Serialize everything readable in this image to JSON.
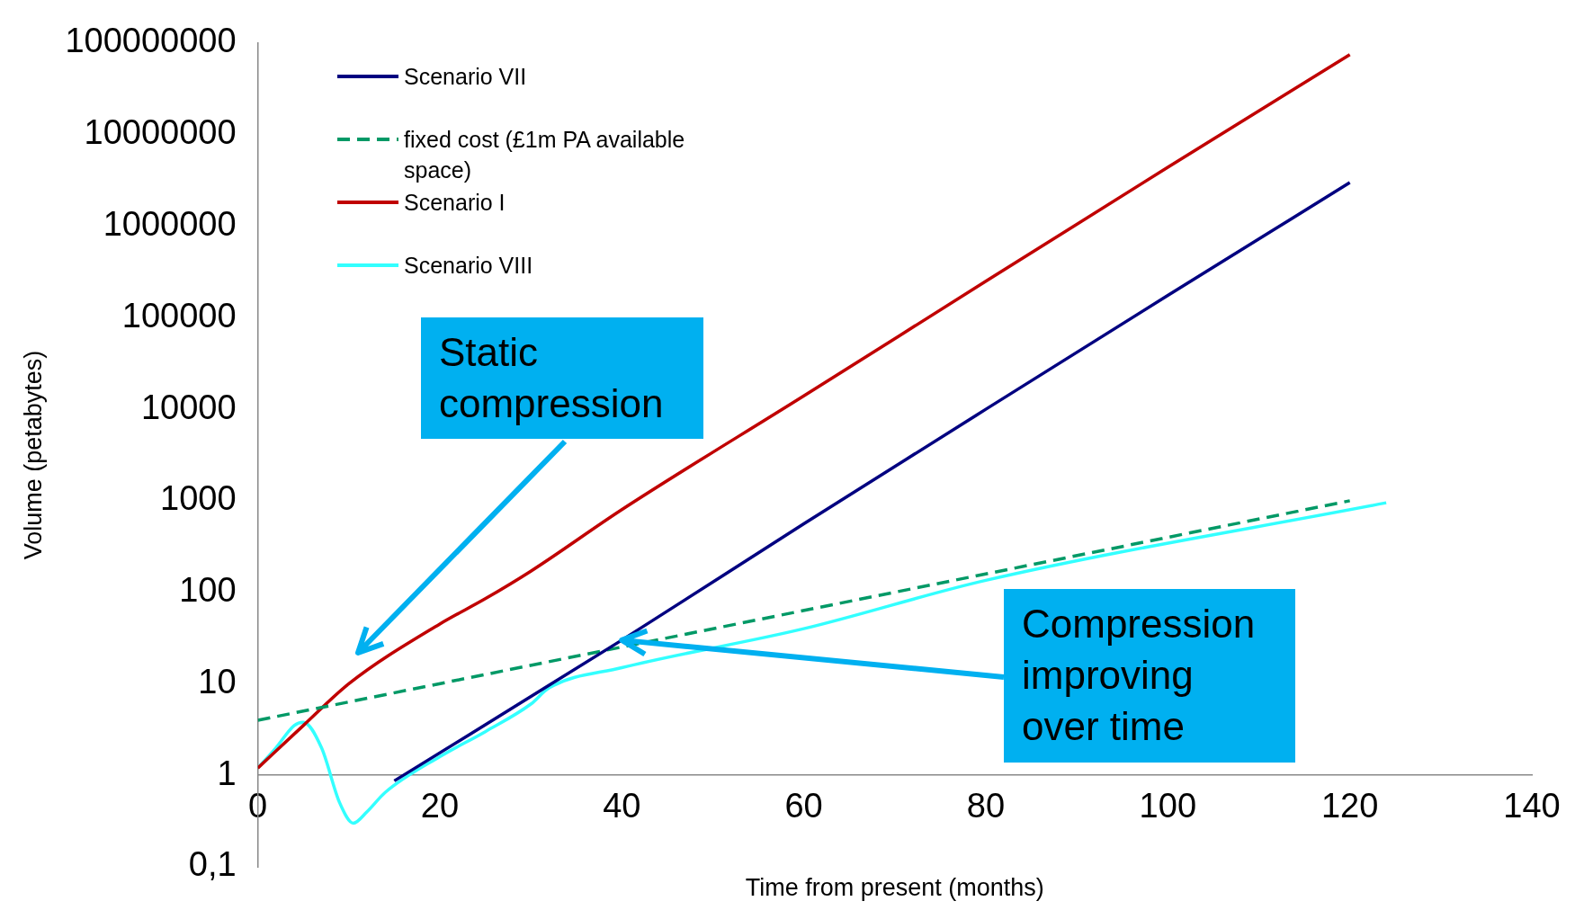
{
  "chart_data": {
    "type": "line",
    "xlabel": "Time from present (months)",
    "ylabel": "Volume (petabytes)",
    "log": "y",
    "xlim": [
      0,
      140
    ],
    "xticks": [
      0,
      20,
      40,
      60,
      80,
      100,
      120,
      140
    ],
    "ylim": [
      0.1,
      100000000
    ],
    "yticks": [
      {
        "value": 0.1,
        "label": "0,1"
      },
      1,
      10,
      100,
      1000,
      10000,
      100000,
      1000000,
      10000000,
      100000000
    ],
    "grid": false,
    "legend": "top left",
    "marker": "none",
    "series": [
      {
        "name": "Scenario VII",
        "color": "#000080",
        "x": [
          15,
          40,
          60,
          80,
          100,
          120
        ],
        "values": [
          0.87,
          30,
          560,
          10000,
          175000,
          3000000
        ]
      },
      {
        "name": "fixed cost (£1m PA available space)",
        "color": "#009966",
        "line_style": "dashed",
        "x": [
          0,
          120
        ],
        "values": [
          4,
          1000
        ]
      },
      {
        "name": "Scenario I",
        "color": "#c00000",
        "x": [
          0,
          5,
          10,
          20,
          25,
          30,
          40,
          60,
          80,
          100,
          120
        ],
        "values": [
          1.2,
          3.5,
          10,
          45,
          85,
          170,
          800,
          14000,
          250000,
          4400000,
          75000000
        ]
      },
      {
        "name": "Scenario VIII",
        "color": "#33ffff",
        "x": [
          0,
          2,
          4,
          5,
          7,
          9,
          10.5,
          12,
          14,
          20,
          25,
          30,
          32,
          40,
          60,
          80,
          124
        ],
        "values": [
          1.2,
          2,
          3.5,
          3.8,
          2,
          0.5,
          0.3,
          0.4,
          0.65,
          1.6,
          3,
          6,
          9,
          15,
          40,
          135,
          950
        ]
      }
    ],
    "annotations": [
      "Static compression",
      {
        "text": "Compression improving over time",
        "x": 40,
        "y": 30
      }
    ]
  }
}
